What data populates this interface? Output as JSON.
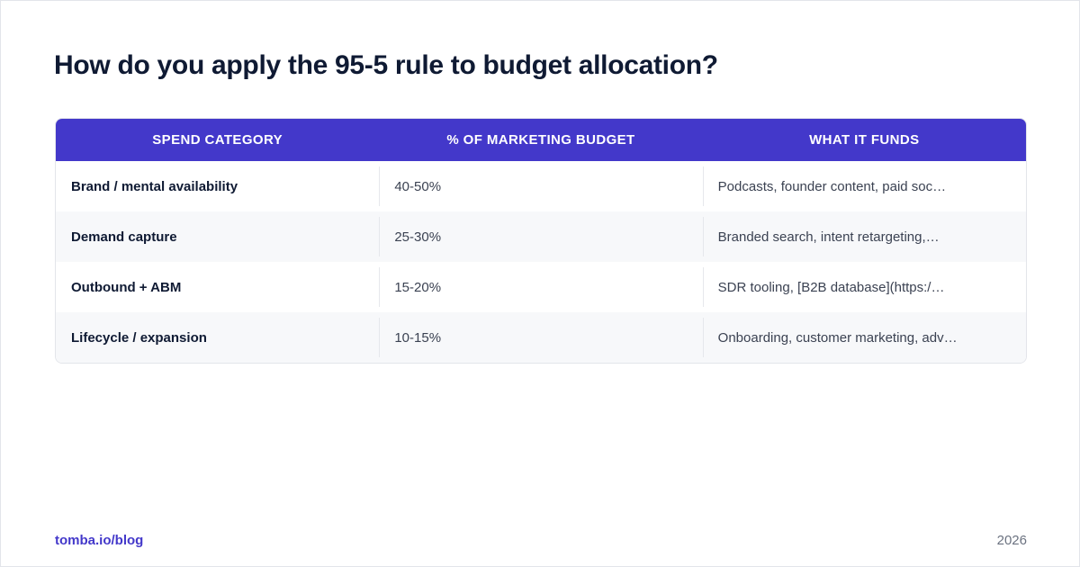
{
  "title": "How do you apply the 95-5 rule to budget allocation?",
  "table": {
    "headers": [
      "SPEND CATEGORY",
      "% OF MARKETING BUDGET",
      "WHAT IT FUNDS"
    ],
    "rows": [
      [
        "Brand / mental availability",
        "40-50%",
        "Podcasts, founder content, paid soc…"
      ],
      [
        "Demand capture",
        "25-30%",
        "Branded search, intent retargeting,…"
      ],
      [
        "Outbound + ABM",
        "15-20%",
        "SDR tooling, [B2B database](https:/…"
      ],
      [
        "Lifecycle / expansion",
        "10-15%",
        "Onboarding, customer marketing, adv…"
      ]
    ]
  },
  "footer": {
    "link": "tomba.io/blog",
    "year": "2026"
  },
  "colors": {
    "header_bg": "#4338ca",
    "title": "#0f1a33",
    "row_alt": "#f7f8fa"
  }
}
